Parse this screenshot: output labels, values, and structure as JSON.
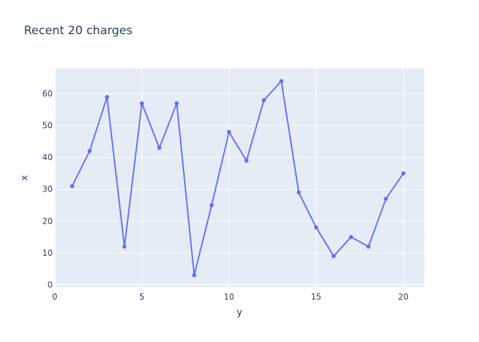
{
  "chart_data": {
    "type": "line",
    "title": "Recent 20 charges",
    "xlabel": "y",
    "ylabel": "x",
    "xlim": [
      0,
      21.2
    ],
    "ylim": [
      -0.8,
      68
    ],
    "xticks": [
      0,
      5,
      10,
      15,
      20
    ],
    "yticks": [
      0,
      10,
      20,
      30,
      40,
      50,
      60
    ],
    "grid": true,
    "line_color": "#636efa",
    "plot_bg": "#e5ecf6",
    "series": [
      {
        "x": [
          1,
          2,
          3,
          4,
          5,
          6,
          7,
          8,
          9,
          10,
          11,
          12,
          13,
          14,
          15,
          16,
          17,
          18,
          19,
          20
        ],
        "values": [
          31,
          42,
          59,
          12,
          57,
          43,
          57,
          3,
          25,
          48,
          39,
          58,
          64,
          29,
          18,
          9,
          15,
          12,
          27,
          35
        ]
      }
    ]
  }
}
